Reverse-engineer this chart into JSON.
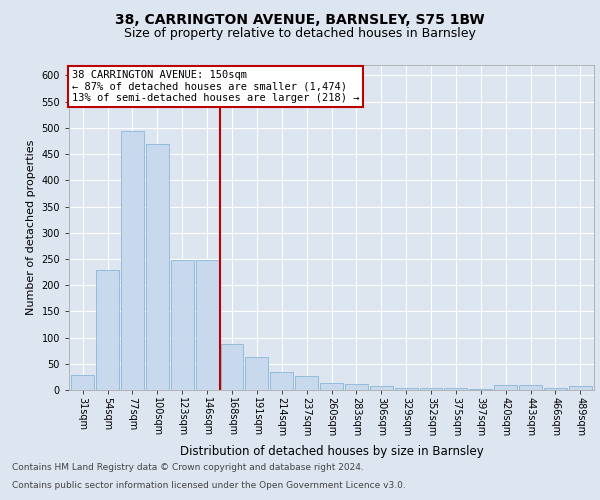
{
  "title1": "38, CARRINGTON AVENUE, BARNSLEY, S75 1BW",
  "title2": "Size of property relative to detached houses in Barnsley",
  "xlabel": "Distribution of detached houses by size in Barnsley",
  "ylabel": "Number of detached properties",
  "categories": [
    "31sqm",
    "54sqm",
    "77sqm",
    "100sqm",
    "123sqm",
    "146sqm",
    "168sqm",
    "191sqm",
    "214sqm",
    "237sqm",
    "260sqm",
    "283sqm",
    "306sqm",
    "329sqm",
    "352sqm",
    "375sqm",
    "397sqm",
    "420sqm",
    "443sqm",
    "466sqm",
    "489sqm"
  ],
  "values": [
    28,
    228,
    495,
    470,
    248,
    248,
    88,
    63,
    35,
    27,
    14,
    12,
    7,
    4,
    3,
    3,
    2,
    10,
    10,
    3,
    7
  ],
  "bar_color": "#c8d9ee",
  "bar_edge_color": "#7aafd4",
  "vline_x": 5.5,
  "vline_color": "#bb0000",
  "annotation_line1": "38 CARRINGTON AVENUE: 150sqm",
  "annotation_line2": "← 87% of detached houses are smaller (1,474)",
  "annotation_line3": "13% of semi-detached houses are larger (218) →",
  "annotation_box_color": "#ffffff",
  "annotation_box_edge": "#bb0000",
  "ylim": [
    0,
    620
  ],
  "yticks": [
    0,
    50,
    100,
    150,
    200,
    250,
    300,
    350,
    400,
    450,
    500,
    550,
    600
  ],
  "bg_color": "#dde5f0",
  "plot_bg_color": "#dde5f0",
  "grid_color": "#ffffff",
  "footer1": "Contains HM Land Registry data © Crown copyright and database right 2024.",
  "footer2": "Contains public sector information licensed under the Open Government Licence v3.0.",
  "title1_fontsize": 10,
  "title2_fontsize": 9,
  "xlabel_fontsize": 8.5,
  "ylabel_fontsize": 8,
  "tick_fontsize": 7,
  "annotation_fontsize": 7.5,
  "footer_fontsize": 6.5
}
